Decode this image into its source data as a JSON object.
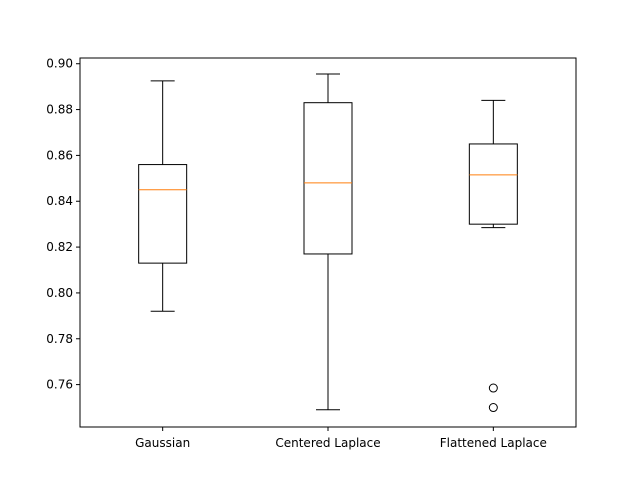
{
  "chart_data": {
    "type": "box",
    "categories": [
      "Gaussian",
      "Centered Laplace",
      "Flattened Laplace"
    ],
    "boxes": [
      {
        "whisker_low": 0.792,
        "q1": 0.813,
        "median": 0.845,
        "q3": 0.856,
        "whisker_high": 0.8925,
        "outliers": []
      },
      {
        "whisker_low": 0.749,
        "q1": 0.817,
        "median": 0.848,
        "q3": 0.883,
        "whisker_high": 0.8955,
        "outliers": []
      },
      {
        "whisker_low": 0.8285,
        "q1": 0.83,
        "median": 0.8515,
        "q3": 0.865,
        "whisker_high": 0.884,
        "outliers": [
          0.7585,
          0.75
        ]
      }
    ],
    "ylim": [
      0.7415,
      0.9025
    ],
    "yticks": [
      0.76,
      0.78,
      0.8,
      0.82,
      0.84,
      0.86,
      0.88,
      0.9
    ],
    "ytick_labels": [
      "0.76",
      "0.78",
      "0.80",
      "0.82",
      "0.84",
      "0.86",
      "0.88",
      "0.90"
    ],
    "grid": false,
    "colors": {
      "box": "#000000",
      "median": "#ff7f0e",
      "flier": "#000000"
    }
  }
}
